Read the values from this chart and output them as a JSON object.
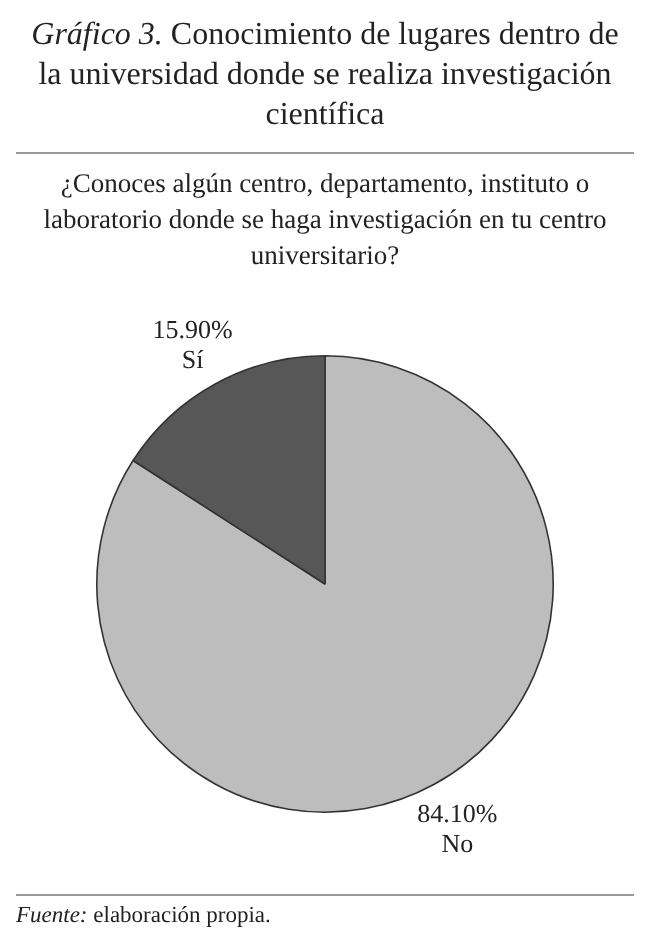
{
  "chart_data": {
    "type": "pie",
    "title": "Gráfico 3. Conocimiento de lugares dentro de la universidad donde se realiza investigación científica",
    "subtitle": "¿Conoces algún centro, departamento, instituto o laboratorio donde se haga investigación en tu centro universitario?",
    "categories": [
      "No",
      "Sí"
    ],
    "values": [
      84.1,
      15.9
    ],
    "value_labels": [
      "84.10%",
      "15.90%"
    ],
    "colors": [
      "#bdbdbd",
      "#575757"
    ],
    "legend": false,
    "annotations": [
      "Fuente: elaboración propia."
    ]
  }
}
